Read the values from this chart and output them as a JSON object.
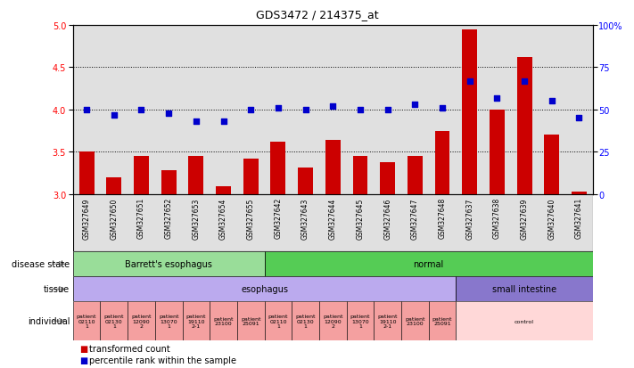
{
  "title": "GDS3472 / 214375_at",
  "samples": [
    "GSM327649",
    "GSM327650",
    "GSM327651",
    "GSM327652",
    "GSM327653",
    "GSM327654",
    "GSM327655",
    "GSM327642",
    "GSM327643",
    "GSM327644",
    "GSM327645",
    "GSM327646",
    "GSM327647",
    "GSM327648",
    "GSM327637",
    "GSM327638",
    "GSM327639",
    "GSM327640",
    "GSM327641"
  ],
  "bar_values": [
    3.5,
    3.2,
    3.45,
    3.28,
    3.45,
    3.1,
    3.42,
    3.62,
    3.32,
    3.64,
    3.45,
    3.38,
    3.45,
    3.75,
    4.95,
    4.0,
    4.62,
    3.7,
    3.03
  ],
  "dot_values": [
    50,
    47,
    50,
    48,
    43,
    43,
    50,
    51,
    50,
    52,
    50,
    50,
    53,
    51,
    67,
    57,
    67,
    55,
    45
  ],
  "ylim_left": [
    3.0,
    5.0
  ],
  "ylim_right": [
    0,
    100
  ],
  "yticks_left": [
    3.0,
    3.5,
    4.0,
    4.5,
    5.0
  ],
  "yticks_right": [
    0,
    25,
    50,
    75,
    100
  ],
  "bar_color": "#cc0000",
  "dot_color": "#0000cc",
  "grid_values": [
    3.5,
    4.0,
    4.5
  ],
  "disease_state_groups": [
    {
      "label": "Barrett's esophagus",
      "start": 0,
      "end": 7,
      "color": "#99dd99"
    },
    {
      "label": "normal",
      "start": 7,
      "end": 19,
      "color": "#55cc55"
    }
  ],
  "tissue_groups": [
    {
      "label": "esophagus",
      "start": 0,
      "end": 14,
      "color": "#bbaaee"
    },
    {
      "label": "small intestine",
      "start": 14,
      "end": 19,
      "color": "#8877cc"
    }
  ],
  "individual_groups": [
    {
      "label": "patient\n02110\n1",
      "start": 0,
      "end": 1,
      "color": "#f4a0a0"
    },
    {
      "label": "patient\n02130\n1",
      "start": 1,
      "end": 2,
      "color": "#f4a0a0"
    },
    {
      "label": "patient\n12090\n2",
      "start": 2,
      "end": 3,
      "color": "#f4a0a0"
    },
    {
      "label": "patient\n13070\n1",
      "start": 3,
      "end": 4,
      "color": "#f4a0a0"
    },
    {
      "label": "patient\n19110\n2-1",
      "start": 4,
      "end": 5,
      "color": "#f4a0a0"
    },
    {
      "label": "patient\n23100",
      "start": 5,
      "end": 6,
      "color": "#f4a0a0"
    },
    {
      "label": "patient\n25091",
      "start": 6,
      "end": 7,
      "color": "#f4a0a0"
    },
    {
      "label": "patient\n02110\n1",
      "start": 7,
      "end": 8,
      "color": "#f4a0a0"
    },
    {
      "label": "patient\n02130\n1",
      "start": 8,
      "end": 9,
      "color": "#f4a0a0"
    },
    {
      "label": "patient\n12090\n2",
      "start": 9,
      "end": 10,
      "color": "#f4a0a0"
    },
    {
      "label": "patient\n13070\n1",
      "start": 10,
      "end": 11,
      "color": "#f4a0a0"
    },
    {
      "label": "patient\n19110\n2-1",
      "start": 11,
      "end": 12,
      "color": "#f4a0a0"
    },
    {
      "label": "patient\n23100",
      "start": 12,
      "end": 13,
      "color": "#f4a0a0"
    },
    {
      "label": "patient\n25091",
      "start": 13,
      "end": 14,
      "color": "#f4a0a0"
    },
    {
      "label": "control",
      "start": 14,
      "end": 19,
      "color": "#ffd8d8"
    }
  ],
  "row_labels": [
    "disease state",
    "tissue",
    "individual"
  ],
  "background_color": "#ffffff",
  "plot_bg_color": "#e0e0e0"
}
